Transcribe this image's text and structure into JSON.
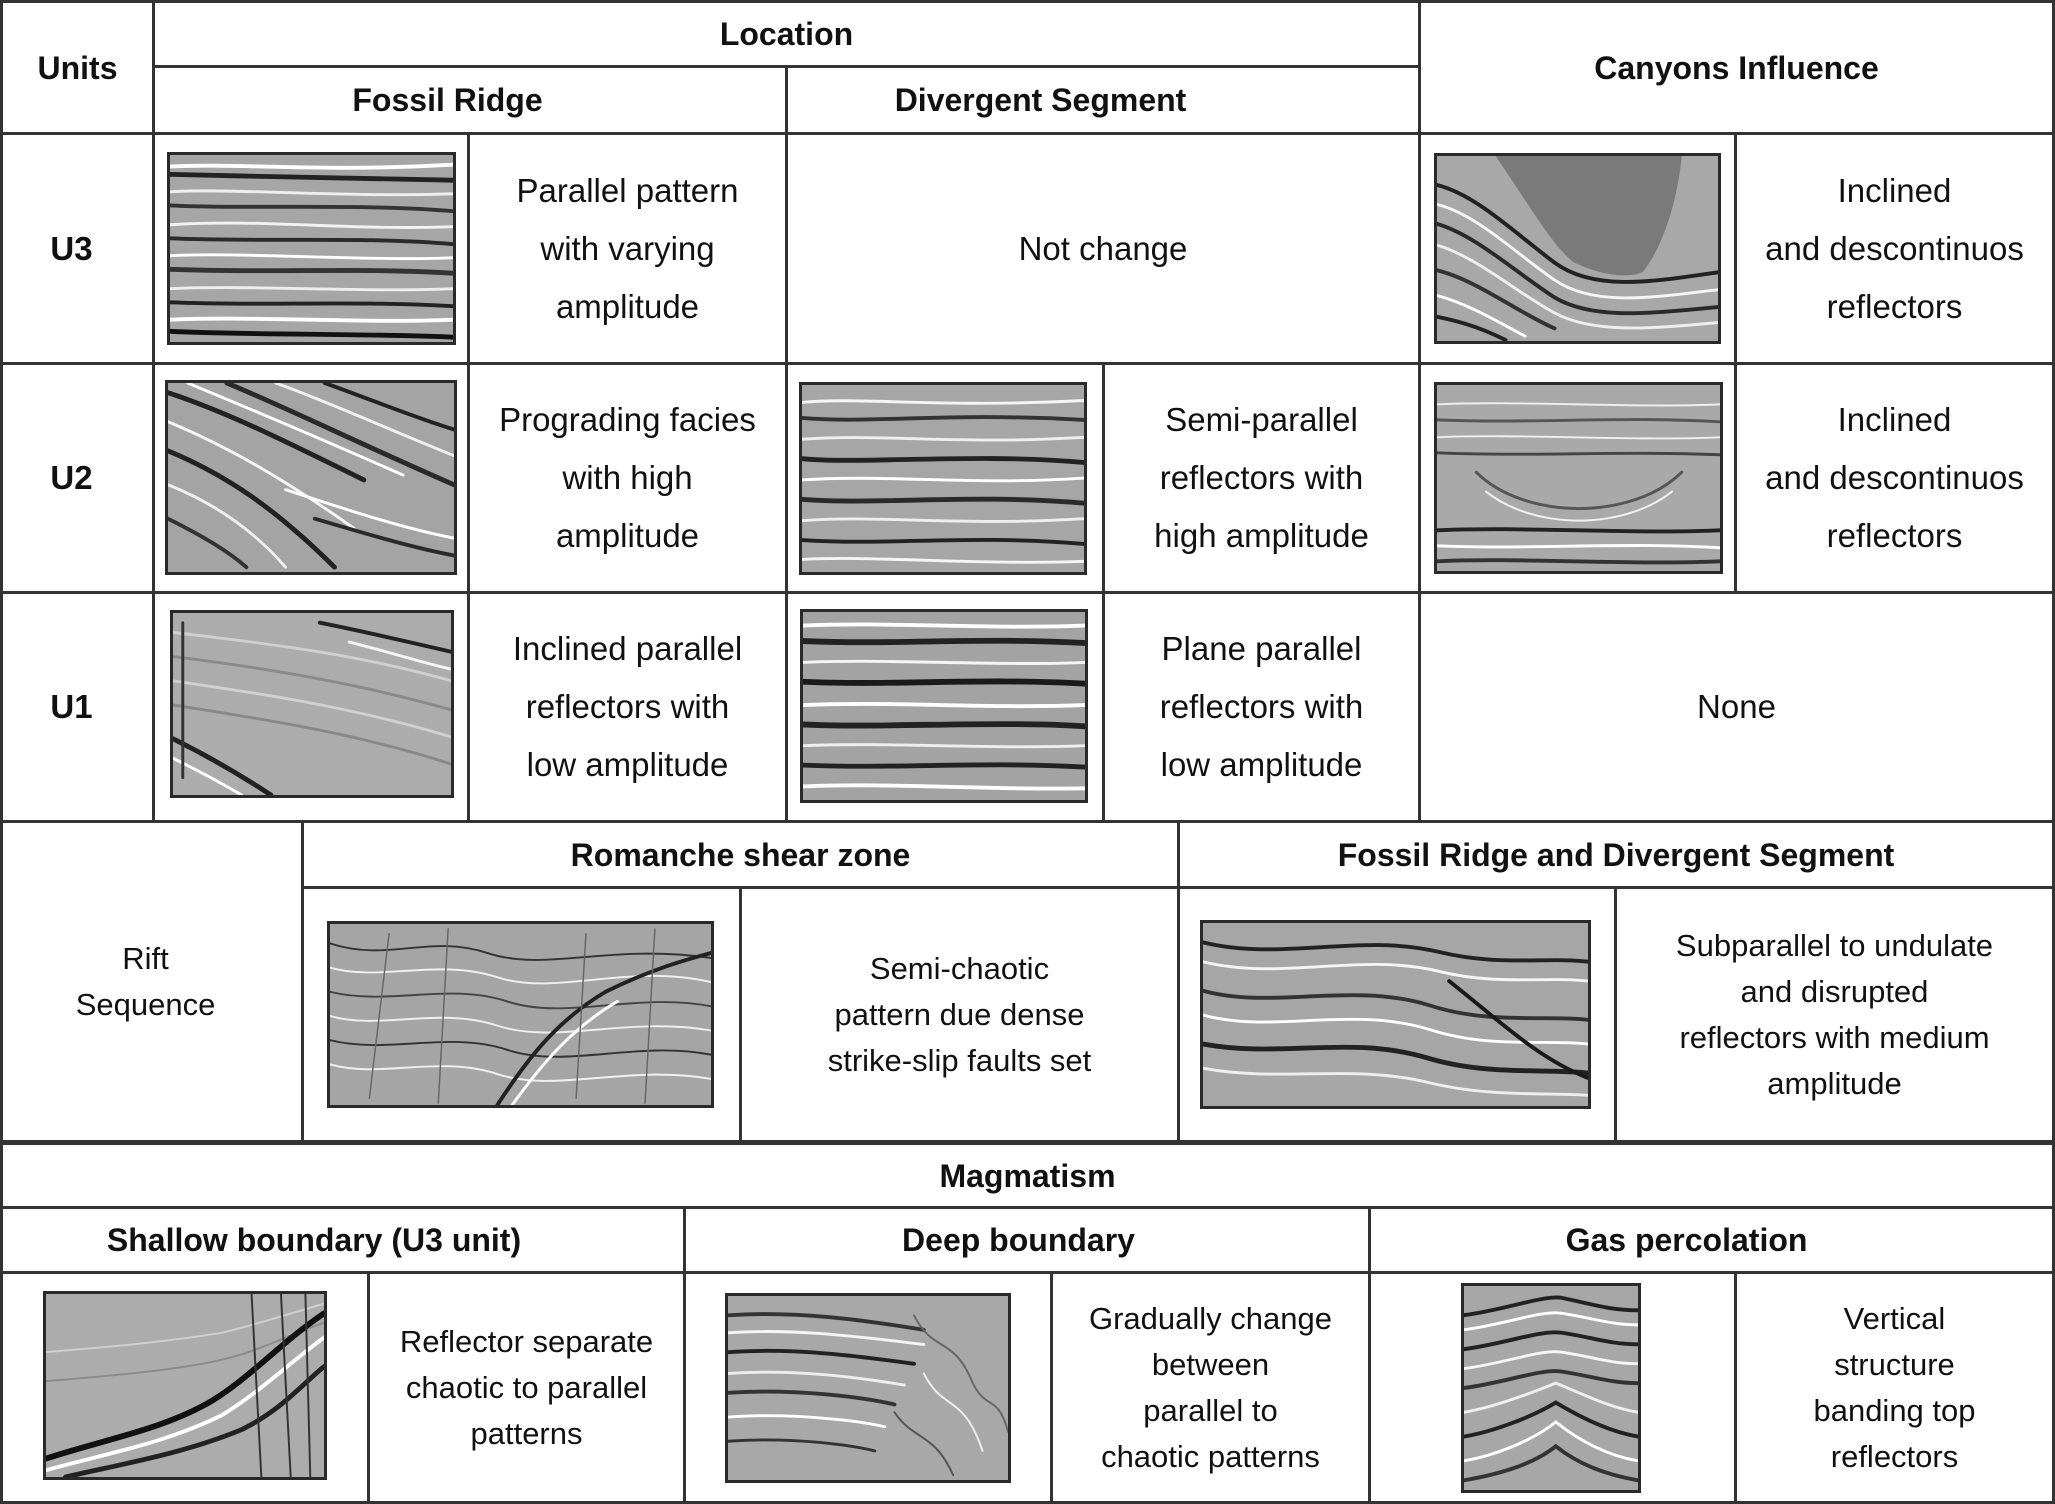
{
  "headers": {
    "units": "Units",
    "location": "Location",
    "fossil_ridge": "Fossil Ridge",
    "divergent_segment": "Divergent Segment",
    "canyons_influence": "Canyons Influence"
  },
  "rows": {
    "u3": {
      "unit": "U3",
      "fossil_ridge": "Parallel pattern\nwith varying\namplitude",
      "divergent_segment": "Not change",
      "canyons": "Inclined\nand descontinuos\nreflectors"
    },
    "u2": {
      "unit": "U2",
      "fossil_ridge": "Prograding facies\nwith high\namplitude",
      "divergent_segment": "Semi-parallel\nreflectors with\nhigh amplitude",
      "canyons": "Inclined\nand descontinuos\nreflectors"
    },
    "u1": {
      "unit": "U1",
      "fossil_ridge": "Inclined parallel\nreflectors with\nlow amplitude",
      "divergent_segment": "Plane parallel\nreflectors with\nlow amplitude",
      "canyons": "None"
    }
  },
  "rift": {
    "label": "Rift\nSequence",
    "romanche_header": "Romanche shear zone",
    "romanche_text": "Semi-chaotic\npattern due dense\nstrike-slip faults set",
    "fossil_div_header": "Fossil Ridge and Divergent Segment",
    "fossil_div_text": "Subparallel to undulate\nand disrupted\nreflectors with medium\namplitude"
  },
  "magmatism": {
    "header": "Magmatism",
    "shallow_header": "Shallow boundary (U3 unit)",
    "shallow_text": "Reflector separate\nchaotic to parallel\npatterns",
    "deep_header": "Deep boundary",
    "deep_text": "Gradually change\nbetween\nparallel to\nchaotic  patterns",
    "gas_header": "Gas percolation",
    "gas_text": "Vertical\nstructure\nbanding top\nreflectors"
  },
  "colors": {
    "grid_line": "#333333",
    "seismic_background": "#9a9a9a",
    "canyon_fill": "#7a7a7a"
  }
}
